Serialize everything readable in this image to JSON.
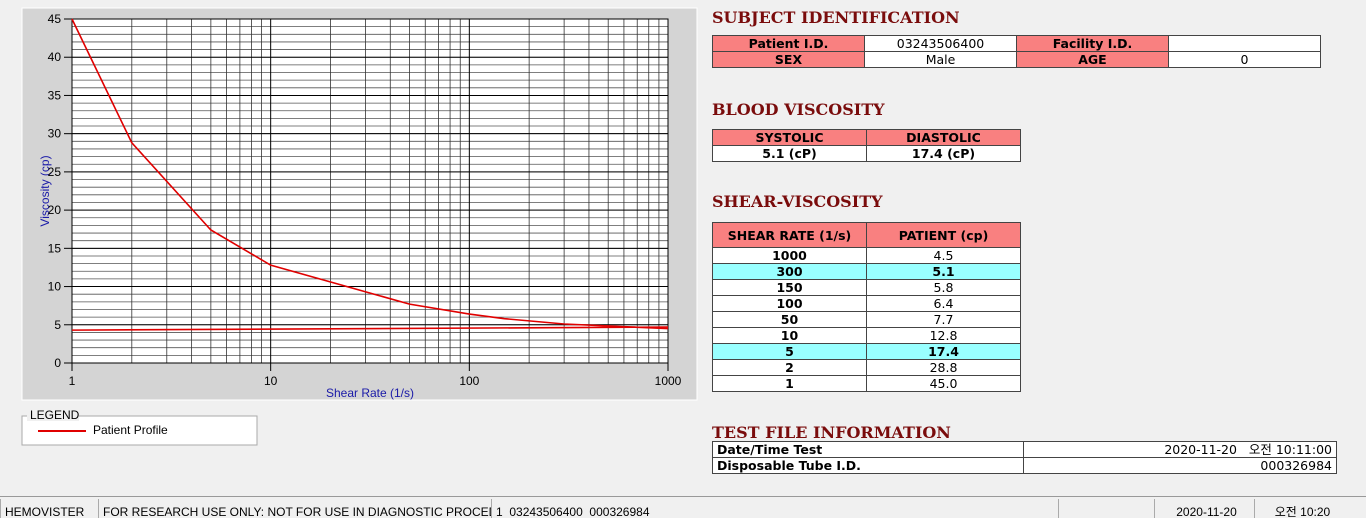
{
  "chart_data": {
    "type": "line",
    "xlabel": "Shear Rate (1/s)",
    "ylabel": "Viscosity (cp)",
    "x": [
      1,
      2,
      5,
      10,
      50,
      100,
      150,
      300,
      1000
    ],
    "series": [
      {
        "name": "Patient Profile",
        "color": "#e00000",
        "values": [
          45.0,
          28.8,
          17.4,
          12.8,
          7.7,
          6.4,
          5.8,
          5.1,
          4.5
        ]
      },
      {
        "color": "#e00000",
        "x": [
          1,
          1000
        ],
        "values": [
          4.3,
          4.7
        ]
      }
    ],
    "xlog": true,
    "xlim": [
      1,
      1000
    ],
    "xticks": [
      1,
      10,
      100,
      1000
    ],
    "ylim": [
      0,
      45
    ],
    "yticks": [
      0,
      5,
      10,
      15,
      20,
      25,
      30,
      35,
      40,
      45
    ],
    "grid": true,
    "legend_title": "LEGEND"
  },
  "subject": {
    "title": "SUBJECT IDENTIFICATION",
    "fields": [
      {
        "label": "Patient I.D.",
        "value": "03243506400"
      },
      {
        "label": "SEX",
        "value": "Male"
      },
      {
        "label": "Facility I.D."
      },
      {
        "label": "AGE",
        "value": "0"
      }
    ]
  },
  "blood": {
    "title": "BLOOD VISCOSITY",
    "headers": [
      "SYSTOLIC",
      "DIASTOLIC"
    ],
    "values": [
      "5.1 (cP)",
      "17.4 (cP)"
    ]
  },
  "shear": {
    "title": "SHEAR-VISCOSITY",
    "headers": [
      "SHEAR RATE (1/s)",
      "PATIENT (cp)"
    ],
    "rows": [
      [
        "1000",
        "4.5"
      ],
      [
        "300",
        "5.1"
      ],
      [
        "150",
        "5.8"
      ],
      [
        "100",
        "6.4"
      ],
      [
        "50",
        "7.7"
      ],
      [
        "10",
        "12.8"
      ],
      [
        "5",
        "17.4"
      ],
      [
        "2",
        "28.8"
      ],
      [
        "1",
        "45.0"
      ]
    ],
    "highlight_rows": [
      1,
      6
    ]
  },
  "testfile": {
    "title": "TEST FILE INFORMATION",
    "rows": [
      [
        "Date/Time Test",
        "2020-11-20   오전 10:11:00"
      ],
      [
        "Disposable Tube I.D.",
        "000326984"
      ]
    ]
  },
  "status": [
    "HEMOVISTER",
    "FOR RESEARCH USE ONLY: NOT FOR USE IN DIAGNOSTIC PROCEDURES",
    "1  03243506400  000326984",
    "2020-11-20",
    "오전 10:20"
  ]
}
